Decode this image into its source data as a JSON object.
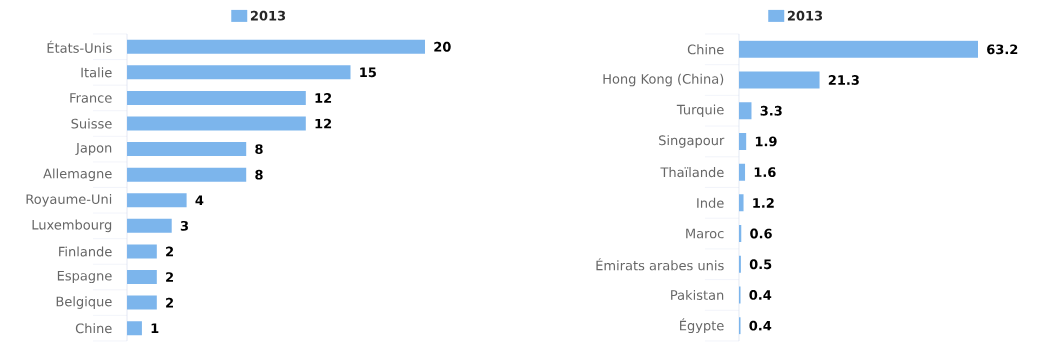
{
  "chart_data": [
    {
      "type": "bar",
      "orientation": "horizontal",
      "categories": [
        "États-Unis",
        "Italie",
        "France",
        "Suisse",
        "Japon",
        "Allemagne",
        "Royaume-Uni",
        "Luxembourg",
        "Finlande",
        "Espagne",
        "Belgique",
        "Chine"
      ],
      "series": [
        {
          "name": "2013",
          "color": "#7cb5ec",
          "values": [
            20,
            15,
            12,
            12,
            8,
            8,
            4,
            3,
            2,
            2,
            2,
            1
          ]
        }
      ],
      "data_labels": true,
      "legend": "top"
    },
    {
      "type": "bar",
      "orientation": "horizontal",
      "categories": [
        "Chine",
        "Hong Kong (China)",
        "Turquie",
        "Singapour",
        "Thaïlande",
        "Inde",
        "Maroc",
        "Émirats arabes unis",
        "Pakistan",
        "Égypte"
      ],
      "series": [
        {
          "name": "2013",
          "color": "#7cb5ec",
          "values": [
            63.2,
            21.3,
            3.3,
            1.9,
            1.6,
            1.2,
            0.6,
            0.5,
            0.4,
            0.4
          ]
        }
      ],
      "data_labels": true,
      "legend": "top"
    }
  ]
}
